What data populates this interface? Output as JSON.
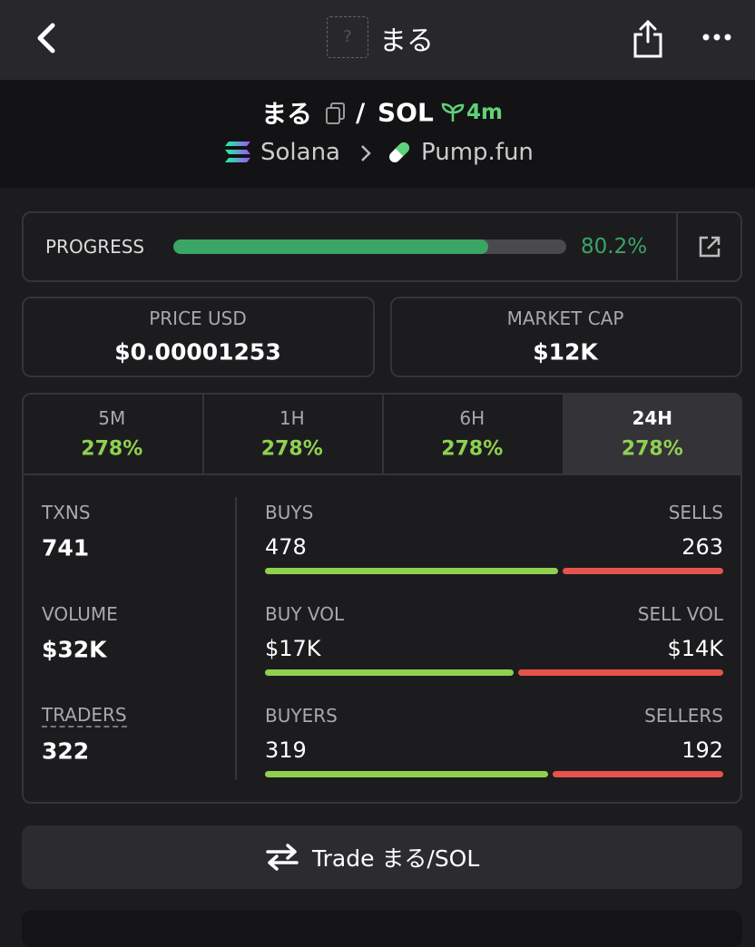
{
  "top_bar": {
    "title": "まる",
    "icon_placeholder": "?"
  },
  "pair": {
    "token": "まる",
    "separator": "/",
    "quote": "SOL",
    "age": "4m",
    "chain": "Solana",
    "dex": "Pump.fun"
  },
  "progress": {
    "label": "PROGRESS",
    "value": 80.2,
    "value_label": "80.2%"
  },
  "price": {
    "label": "PRICE USD",
    "value": "$0.00001253"
  },
  "market_cap": {
    "label": "MARKET CAP",
    "value": "$12K"
  },
  "tabs": [
    {
      "label": "5M",
      "change": "278%"
    },
    {
      "label": "1H",
      "change": "278%"
    },
    {
      "label": "6H",
      "change": "278%"
    },
    {
      "label": "24H",
      "change": "278%",
      "active": true
    }
  ],
  "stats": [
    {
      "label": "TXNS",
      "value": 741
    },
    {
      "label": "VOLUME",
      "value": "$32K"
    },
    {
      "label": "TRADERS",
      "value": 322
    }
  ],
  "splits": [
    {
      "left_label": "BUYS",
      "left": {
        "value": 478,
        "label": "478"
      },
      "right_label": "SELLS",
      "right": {
        "value": 263,
        "label": "263"
      }
    },
    {
      "left_label": "BUY VOL",
      "left": {
        "value": 17000,
        "label": "$17K"
      },
      "right_label": "SELL VOL",
      "right": {
        "value": 14000,
        "label": "$14K"
      }
    },
    {
      "left_label": "BUYERS",
      "left": {
        "value": 319,
        "label": "319"
      },
      "right_label": "SELLERS",
      "right": {
        "value": 192,
        "label": "192"
      }
    }
  ],
  "trade_button": {
    "label": "Trade まる/SOL"
  }
}
